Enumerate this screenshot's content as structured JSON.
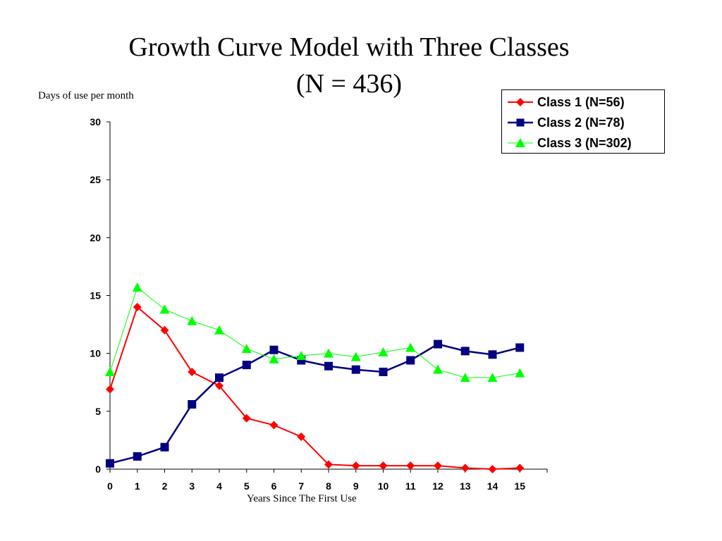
{
  "chart_data": {
    "type": "line",
    "title": "Growth Curve Model with Three Classes",
    "subtitle": "(N = 436)",
    "xlabel": "Years Since The First Use",
    "ylabel": "Days of use per month",
    "x": [
      0,
      1,
      2,
      3,
      4,
      5,
      6,
      7,
      8,
      9,
      10,
      11,
      12,
      13,
      14,
      15
    ],
    "xlim": [
      0,
      16
    ],
    "ylim": [
      0,
      30
    ],
    "yticks": [
      0,
      5,
      10,
      15,
      20,
      25,
      30
    ],
    "grid": false,
    "legend_position": "top-right",
    "series": [
      {
        "name": "Class 1 (N=56)",
        "color": "#ff0000",
        "marker": "diamond",
        "values": [
          6.9,
          14.0,
          12.0,
          8.4,
          7.2,
          4.4,
          3.8,
          2.8,
          0.4,
          0.3,
          0.3,
          0.3,
          0.3,
          0.1,
          0.0,
          0.1
        ]
      },
      {
        "name": "Class 2 (N=78)",
        "color": "#000080",
        "marker": "square",
        "values": [
          0.5,
          1.1,
          1.9,
          5.6,
          7.9,
          9.0,
          10.3,
          9.4,
          8.9,
          8.6,
          8.4,
          9.4,
          10.8,
          10.2,
          9.9,
          10.5
        ]
      },
      {
        "name": "Class 3 (N=302)",
        "color": "#00ff00",
        "marker": "triangle",
        "values": [
          8.4,
          15.7,
          13.8,
          12.8,
          12.0,
          10.4,
          9.5,
          9.8,
          10.0,
          9.7,
          10.1,
          10.5,
          8.6,
          7.9,
          7.9,
          8.3
        ]
      }
    ]
  }
}
